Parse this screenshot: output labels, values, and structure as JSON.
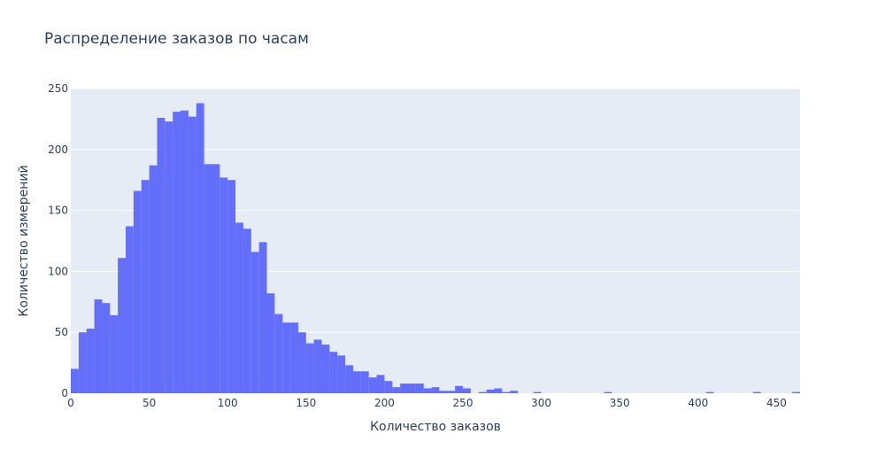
{
  "colors": {
    "plot_background": "#e5ecf6",
    "grid": "#ffffff",
    "bar": "#636efa",
    "text": "#2a3f5f"
  },
  "chart_data": {
    "type": "bar",
    "title": "Распределение заказов по часам",
    "xlabel": "Количество заказов",
    "ylabel": "Количество измерений",
    "xlim": [
      0,
      465
    ],
    "ylim": [
      0,
      250
    ],
    "grid": true,
    "x_ticks": [
      "0",
      "50",
      "100",
      "150",
      "200",
      "250",
      "300",
      "350",
      "400",
      "450"
    ],
    "y_ticks": [
      "0",
      "50",
      "100",
      "150",
      "200",
      "250"
    ],
    "bin_width": 5,
    "bin_starts": [
      0,
      5,
      10,
      15,
      20,
      25,
      30,
      35,
      40,
      45,
      50,
      55,
      60,
      65,
      70,
      75,
      80,
      85,
      90,
      95,
      100,
      105,
      110,
      115,
      120,
      125,
      130,
      135,
      140,
      145,
      150,
      155,
      160,
      165,
      170,
      175,
      180,
      185,
      190,
      195,
      200,
      205,
      210,
      215,
      220,
      225,
      230,
      235,
      240,
      245,
      250,
      255,
      260,
      265,
      270,
      275,
      280,
      285,
      290,
      295,
      300,
      305,
      310,
      315,
      320,
      325,
      330,
      335,
      340,
      345,
      350,
      355,
      360,
      365,
      370,
      375,
      380,
      385,
      390,
      395,
      400,
      405,
      410,
      415,
      420,
      425,
      430,
      435,
      440,
      445,
      450,
      455,
      460
    ],
    "values": [
      20,
      50,
      53,
      77,
      74,
      64,
      111,
      137,
      166,
      175,
      187,
      226,
      223,
      231,
      232,
      227,
      238,
      188,
      188,
      177,
      175,
      140,
      135,
      116,
      124,
      82,
      65,
      58,
      58,
      50,
      41,
      44,
      40,
      34,
      31,
      23,
      18,
      18,
      13,
      15,
      10,
      5,
      8,
      8,
      8,
      4,
      5,
      2,
      2,
      6,
      4,
      0,
      1,
      3,
      4,
      1,
      2,
      0,
      0,
      1,
      0,
      0,
      0,
      0,
      0,
      0,
      0,
      0,
      1,
      0,
      0,
      0,
      0,
      0,
      0,
      0,
      0,
      0,
      0,
      0,
      0,
      1,
      0,
      0,
      0,
      0,
      0,
      1,
      0,
      0,
      0,
      0,
      1
    ]
  }
}
